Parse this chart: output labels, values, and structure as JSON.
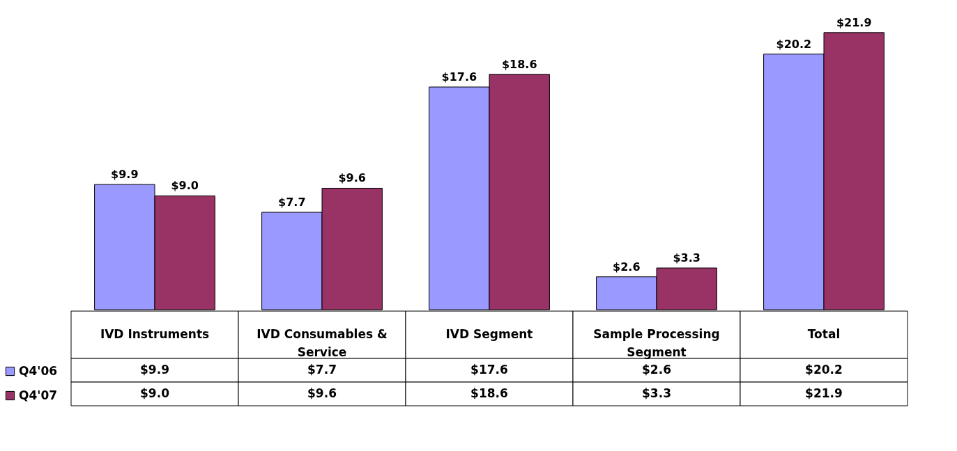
{
  "chart_data": {
    "type": "bar",
    "categories": [
      "IVD Instruments",
      "IVD Consumables & Service",
      "IVD Segment",
      "Sample Processing Segment",
      "Total"
    ],
    "legend": "bottom left",
    "series": [
      {
        "name": "Q4'06",
        "color": "#9999ff",
        "values": [
          9.9,
          7.7,
          17.6,
          2.6,
          20.2
        ],
        "value_labels": [
          "$9.9",
          "$7.7",
          "$17.6",
          "$2.6",
          "$20.2"
        ]
      },
      {
        "name": "Q4'07",
        "color": "#993366",
        "values": [
          9.0,
          9.6,
          18.6,
          3.3,
          21.9
        ],
        "value_labels": [
          "$9.0",
          "$9.6",
          "$18.6",
          "$3.3",
          "$21.9"
        ]
      }
    ]
  }
}
